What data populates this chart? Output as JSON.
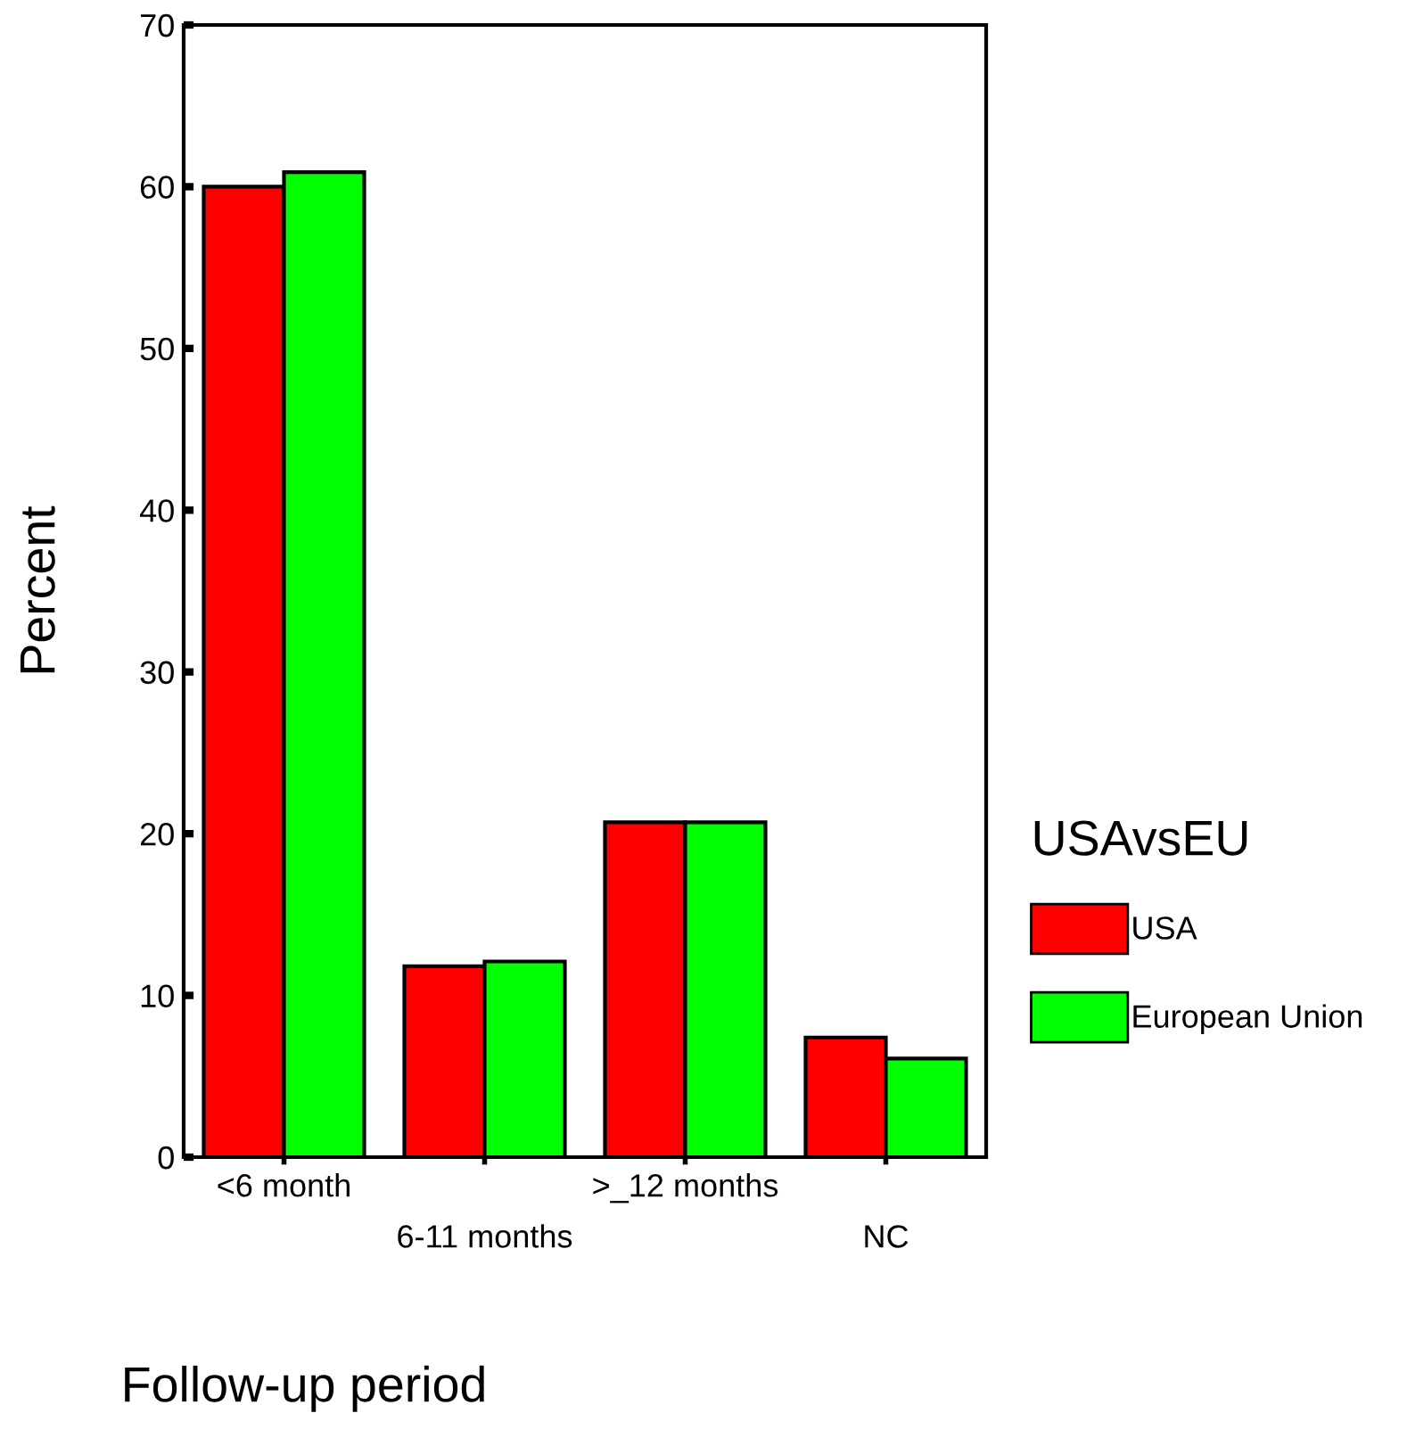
{
  "chart_data": {
    "type": "bar",
    "xlabel": "Follow-up period",
    "ylabel": "Percent",
    "legend_title": "USAvsEU",
    "categories": [
      "<6 month",
      "6-11 months",
      ">_12 months",
      "NC"
    ],
    "series": [
      {
        "name": "USA",
        "color": "#ff0000",
        "values": [
          60.0,
          11.8,
          20.7,
          7.4
        ]
      },
      {
        "name": "European Union",
        "color": "#00ff00",
        "values": [
          60.9,
          12.1,
          20.7,
          6.1
        ]
      }
    ],
    "ylim": [
      0,
      70
    ],
    "yticks": [
      0,
      10,
      20,
      30,
      40,
      50,
      60,
      70
    ],
    "grid": false,
    "legend": "right"
  }
}
